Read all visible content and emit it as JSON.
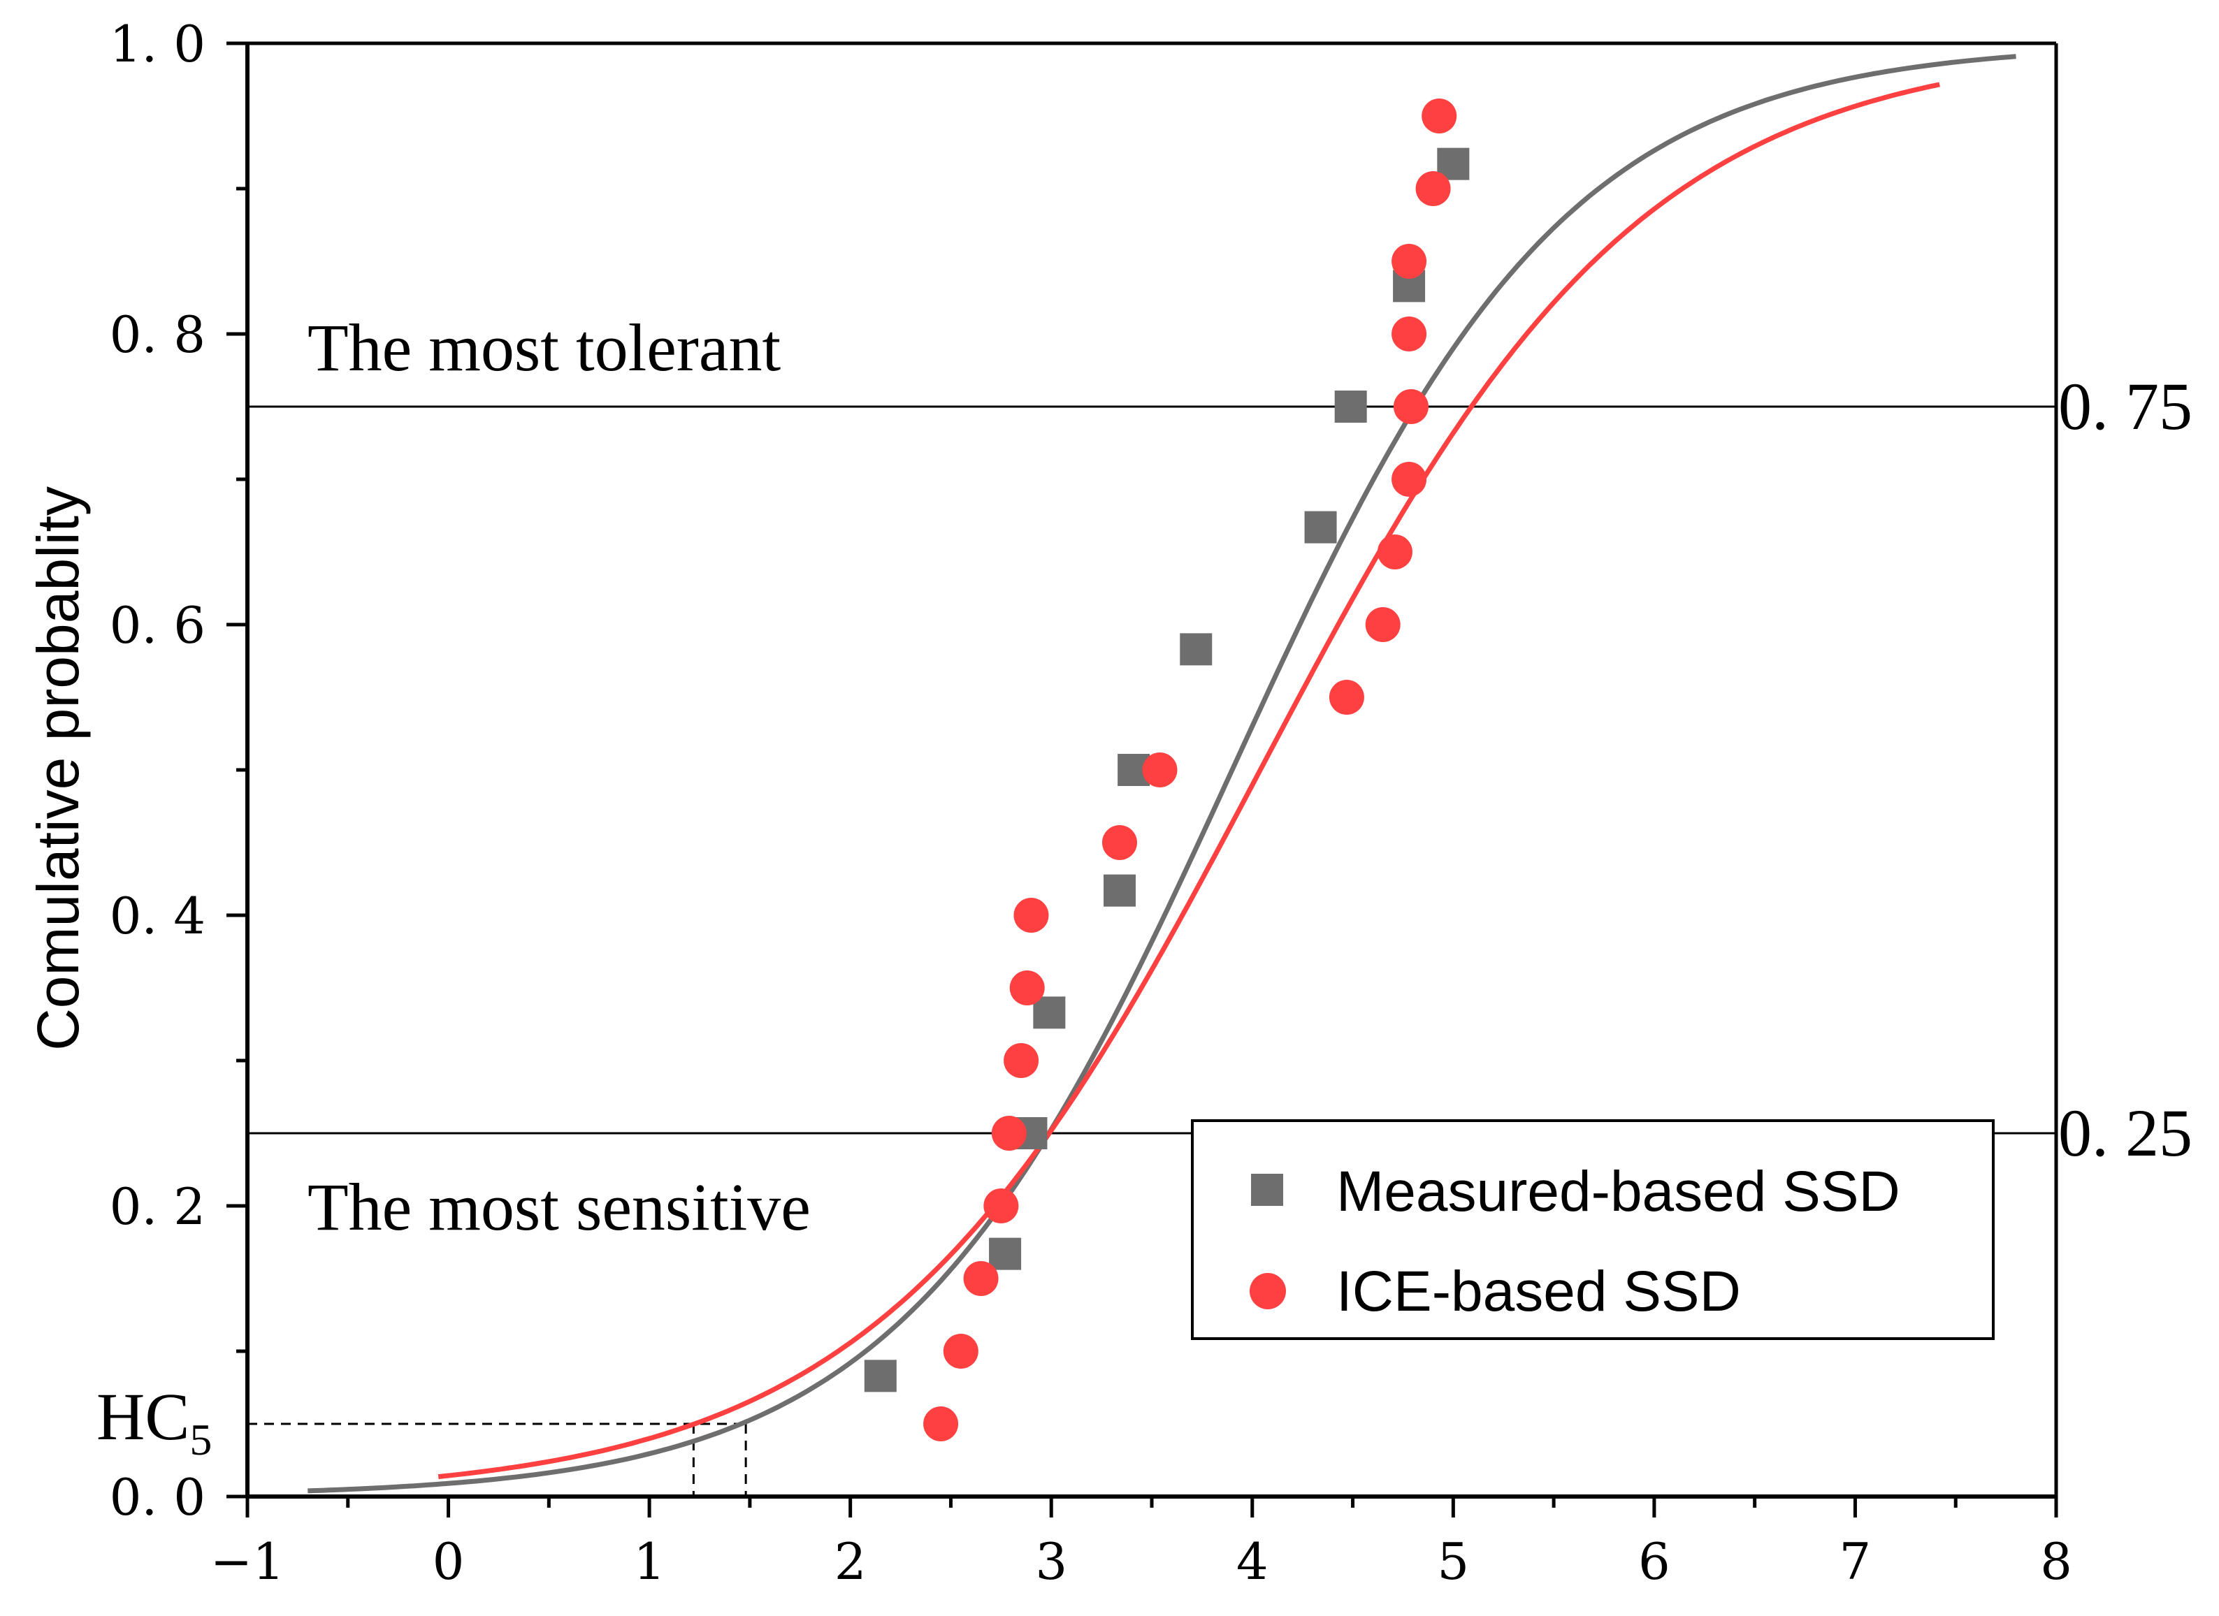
{
  "chart_data": {
    "type": "scatter",
    "ylabel": "Comulative probablity",
    "xlabel": "",
    "xlim": [
      -1,
      8
    ],
    "ylim": [
      0,
      1
    ],
    "x_ticks": [
      -1,
      0,
      1,
      2,
      3,
      4,
      5,
      6,
      7,
      8
    ],
    "x_tick_labels": [
      "−1",
      "0",
      "1",
      "2",
      "3",
      "4",
      "5",
      "6",
      "7",
      "8"
    ],
    "y_ticks": [
      0,
      0.2,
      0.4,
      0.6,
      0.8,
      1.0
    ],
    "y_tick_labels": [
      "0. 0",
      "0. 2",
      "0. 4",
      "0. 6",
      "0. 8",
      "1. 0"
    ],
    "legend_position": "bottom-right",
    "series": [
      {
        "name": "Measured-based SSD",
        "marker": "square",
        "color": "#6e6e6e",
        "x": [
          2.15,
          2.77,
          2.9,
          2.99,
          3.34,
          3.41,
          3.72,
          4.34,
          4.49,
          4.78,
          5.0
        ],
        "y": [
          0.083,
          0.167,
          0.25,
          0.333,
          0.417,
          0.5,
          0.583,
          0.667,
          0.75,
          0.833,
          0.917
        ]
      },
      {
        "name": "ICE-based SSD",
        "marker": "circle",
        "color": "#ff4040",
        "x": [
          2.45,
          2.55,
          2.65,
          2.75,
          2.79,
          2.85,
          2.88,
          2.9,
          3.34,
          3.54,
          4.47,
          4.65,
          4.71,
          4.78,
          4.79,
          4.78,
          4.78,
          4.9,
          4.93
        ],
        "y": [
          0.05,
          0.1,
          0.15,
          0.2,
          0.25,
          0.3,
          0.35,
          0.4,
          0.45,
          0.5,
          0.55,
          0.6,
          0.65,
          0.7,
          0.75,
          0.8,
          0.85,
          0.9,
          0.95
        ]
      }
    ],
    "fitted_curves": [
      {
        "name": "Measured-based fit",
        "color": "#6e6e6e",
        "type": "logistic",
        "mean": 3.9,
        "scale": 0.83,
        "x_range": [
          -0.7,
          7.8
        ]
      },
      {
        "name": "ICE-based fit",
        "color": "#ff4040",
        "type": "logistic",
        "mean": 4.04,
        "scale": 0.956,
        "x_range": [
          -0.05,
          7.42
        ]
      }
    ],
    "reference_lines": [
      {
        "y": 0.75,
        "label": "0. 75"
      },
      {
        "y": 0.25,
        "label": "0. 25"
      }
    ],
    "hc5": {
      "y": 0.05,
      "x_values": [
        1.22,
        1.48
      ],
      "label_main": "HC",
      "label_sub": "5"
    },
    "annotations": {
      "upper": "The most tolerant",
      "lower": "The most sensitive"
    }
  }
}
